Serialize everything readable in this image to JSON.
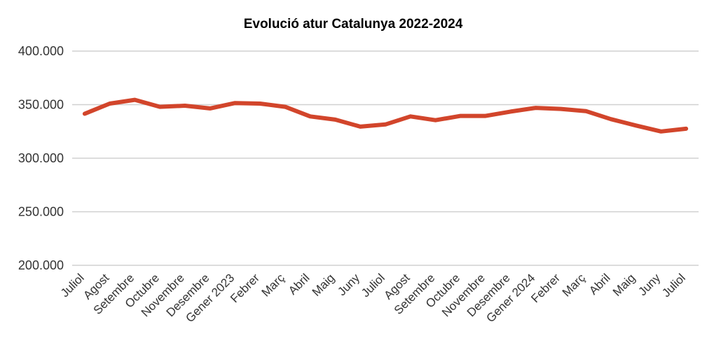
{
  "chart_data": {
    "type": "line",
    "title": "Evolució atur Catalunya 2022-2024",
    "xlabel": "",
    "ylabel": "",
    "ylim": [
      200000,
      400000
    ],
    "yticks": [
      200000,
      250000,
      300000,
      350000,
      400000
    ],
    "ytick_labels": [
      "200.000",
      "250.000",
      "300.000",
      "350.000",
      "400.000"
    ],
    "grid": "horizontal",
    "legend": "none",
    "categories": [
      "Juliol",
      "Agost",
      "Setembre",
      "Octubre",
      "Novembre",
      "Desembre",
      "Gener 2023",
      "Febrer",
      "Març",
      "Abril",
      "Maig",
      "Juny",
      "Juliol",
      "Agost",
      "Setembre",
      "Octubre",
      "Novembre",
      "Desembre",
      "Gener 2024",
      "Febrer",
      "Març",
      "Abril",
      "Maig",
      "Juny",
      "Juliol"
    ],
    "series": [
      {
        "color": "#d2452b",
        "values": [
          341500,
          351000,
          354500,
          348000,
          349000,
          346500,
          351500,
          351000,
          348000,
          339000,
          336000,
          329500,
          331500,
          339000,
          335500,
          339500,
          339500,
          343500,
          347000,
          346000,
          344000,
          336500,
          330500,
          325000,
          327500
        ]
      }
    ]
  }
}
